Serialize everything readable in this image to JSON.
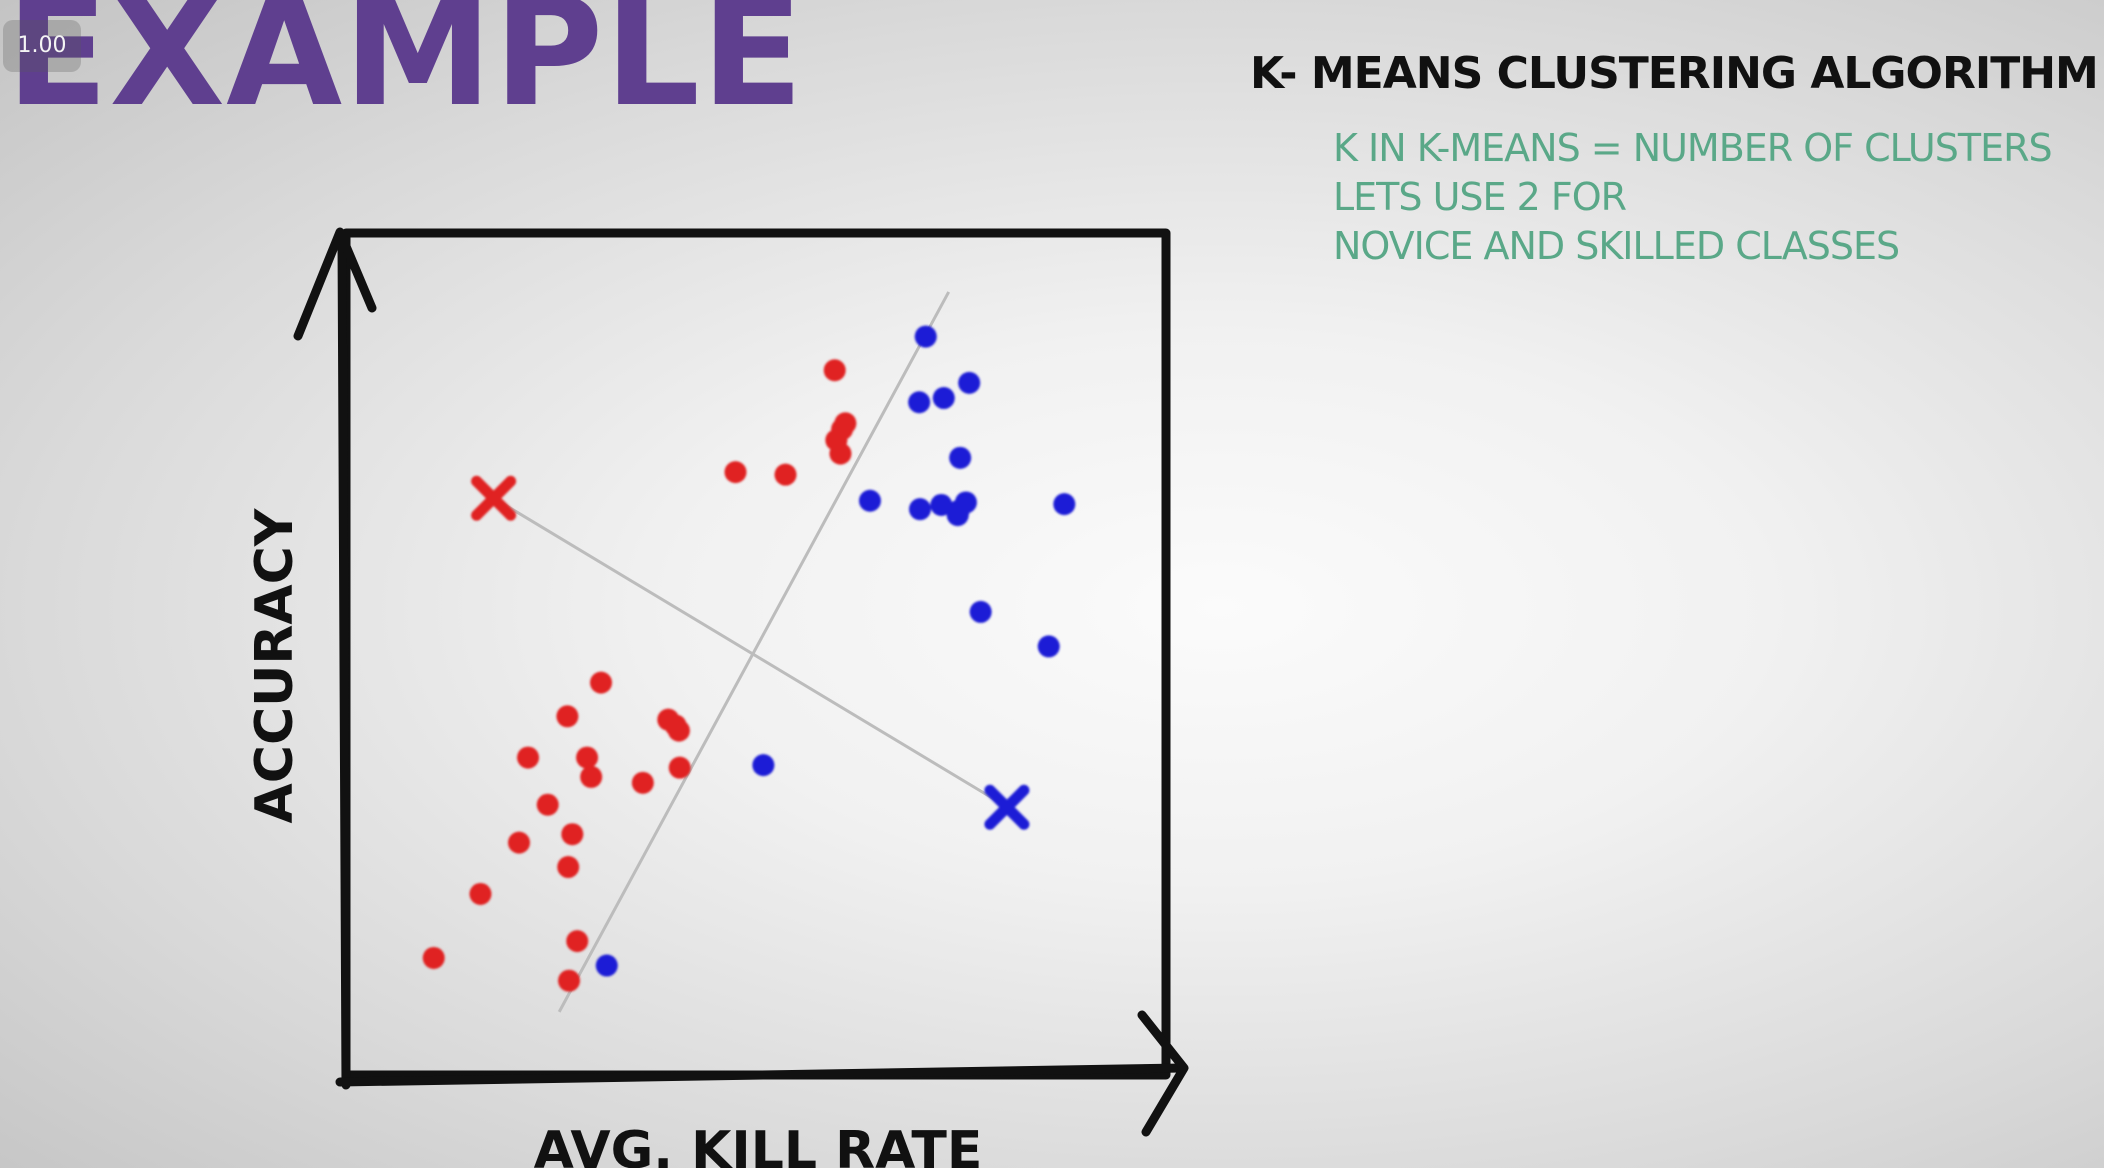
{
  "player": {
    "speed_label": "1.00"
  },
  "slide": {
    "title": "EXAMPLE",
    "subtitle": "K- MEANS CLUSTERING ALGORITHM",
    "notes": [
      "K IN K-MEANS = NUMBER OF CLUSTERS",
      "LETS USE 2 FOR",
      "NOVICE AND SKILLED CLASSES"
    ],
    "colors": {
      "title": "#5f3f8f",
      "notes": "#5aa888",
      "novice_cluster": "#e02424",
      "skilled_cluster": "#1a1ad6",
      "axes": "#111111",
      "guide_lines": "#bcbcbc"
    }
  },
  "diagram": {
    "type": "scatter",
    "xlabel": "AVG. KILL RATE",
    "ylabel": "ACCURACY",
    "axes_range": {
      "x": [
        0,
        100
      ],
      "y": [
        0,
        100
      ]
    },
    "grid": false,
    "legend": "none",
    "series": [
      {
        "color": "red",
        "points": [
          [
            59.6,
            83.7
          ],
          [
            60.5,
            76.7
          ],
          [
            60.9,
            77.4
          ],
          [
            59.8,
            75.4
          ],
          [
            60.3,
            73.8
          ],
          [
            47.5,
            71.6
          ],
          [
            53.6,
            71.3
          ],
          [
            31.1,
            46.6
          ],
          [
            27.0,
            42.6
          ],
          [
            40.2,
            41.5
          ],
          [
            39.3,
            42.2
          ],
          [
            40.6,
            40.9
          ],
          [
            22.2,
            37.7
          ],
          [
            29.4,
            37.7
          ],
          [
            29.9,
            35.4
          ],
          [
            36.2,
            34.7
          ],
          [
            40.7,
            36.5
          ],
          [
            24.6,
            32.1
          ],
          [
            27.6,
            28.6
          ],
          [
            21.1,
            27.6
          ],
          [
            27.1,
            24.7
          ],
          [
            16.4,
            21.5
          ],
          [
            28.2,
            15.9
          ],
          [
            10.7,
            13.9
          ],
          [
            27.2,
            11.2
          ]
        ]
      },
      {
        "color": "blue",
        "points": [
          [
            70.7,
            87.7
          ],
          [
            69.9,
            79.9
          ],
          [
            72.9,
            80.4
          ],
          [
            76.0,
            82.2
          ],
          [
            74.9,
            73.3
          ],
          [
            63.9,
            68.2
          ],
          [
            70.0,
            67.2
          ],
          [
            72.6,
            67.7
          ],
          [
            74.7,
            67.0
          ],
          [
            75.6,
            68.0
          ],
          [
            74.6,
            66.5
          ],
          [
            87.6,
            67.8
          ],
          [
            77.4,
            55.0
          ],
          [
            85.7,
            50.9
          ],
          [
            50.9,
            36.8
          ],
          [
            31.8,
            13.0
          ]
        ]
      }
    ],
    "centroids": [
      {
        "color": "red",
        "x": 18.0,
        "y": 68.5
      },
      {
        "color": "blue",
        "x": 80.6,
        "y": 31.8
      }
    ],
    "guide_lines": [
      {
        "from": [
          17.7,
          68.7
        ],
        "to": [
          80.0,
          32.2
        ]
      },
      {
        "from": [
          73.5,
          93.0
        ],
        "to": [
          26.0,
          7.5
        ]
      }
    ]
  }
}
